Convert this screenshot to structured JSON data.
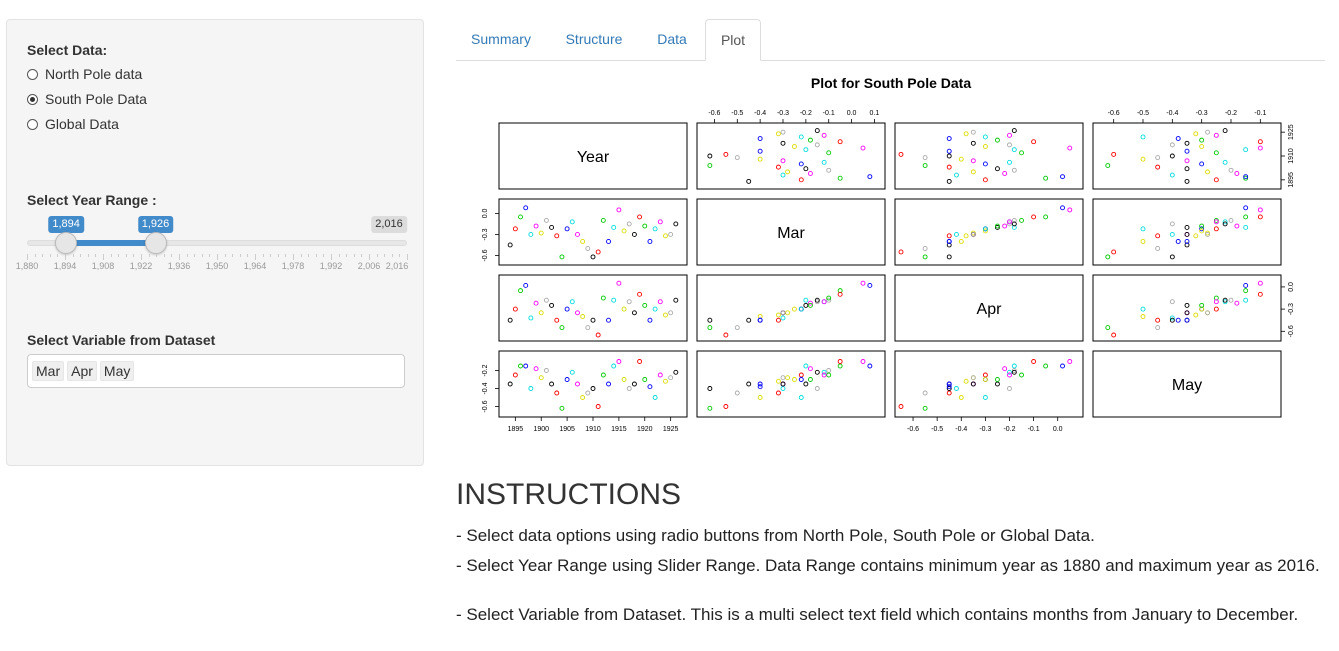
{
  "sidebar": {
    "select_data_label": "Select Data:",
    "radios": [
      {
        "label": "North Pole data",
        "checked": false
      },
      {
        "label": "South Pole Data",
        "checked": true
      },
      {
        "label": "Global Data",
        "checked": false
      }
    ],
    "year_range_label": "Select Year Range :",
    "slider": {
      "min": 1880,
      "max": 2016,
      "from": 1894,
      "to": 1926,
      "from_label": "1,894",
      "to_label": "1,926",
      "max_label": "2,016",
      "grid_labels": [
        "1,880",
        "1,894",
        "1,908",
        "1,922",
        "1,936",
        "1,950",
        "1,964",
        "1,978",
        "1,992",
        "2,006",
        "2,016"
      ]
    },
    "variable_label": "Select Variable from Dataset",
    "selected_variables": [
      "Mar",
      "Apr",
      "May"
    ]
  },
  "tabs": [
    {
      "label": "Summary",
      "active": false
    },
    {
      "label": "Structure",
      "active": false
    },
    {
      "label": "Data",
      "active": false
    },
    {
      "label": "Plot",
      "active": true
    }
  ],
  "chart_data": {
    "type": "scatter",
    "subtype": "pairs-matrix",
    "title": "Plot for South Pole Data",
    "variables": [
      "Year",
      "Mar",
      "Apr",
      "May"
    ],
    "ranges": {
      "Year": [
        1893,
        1927
      ],
      "Mar": [
        -0.65,
        0.12
      ],
      "Apr": [
        -0.65,
        0.08
      ],
      "May": [
        -0.65,
        -0.05
      ]
    },
    "ticks": {
      "Year": [
        "1895",
        "1900",
        "1905",
        "1910",
        "1915",
        "1920",
        "1925"
      ],
      "Mar": [
        "-0.6",
        "-0.5",
        "-0.4",
        "-0.3",
        "-0.2",
        "-0.1",
        "0.0",
        "0.1"
      ],
      "Apr": [
        "-0.6",
        "-0.5",
        "-0.4",
        "-0.3",
        "-0.2",
        "-0.1",
        "0.0"
      ],
      "May": [
        "-0.6",
        "-0.5",
        "-0.4",
        "-0.3",
        "-0.2",
        "-0.1"
      ],
      "Year_right": [
        "1895",
        "1910",
        "1925"
      ],
      "Mar_left": [
        "-0.6",
        "-0.3",
        "0.0"
      ],
      "Apr_right": [
        "-0.6",
        "-0.3",
        "0.0"
      ],
      "May_left": [
        "-0.6",
        "-0.4",
        "-0.2"
      ]
    },
    "colors": [
      "#000000",
      "#ff0000",
      "#00cc00",
      "#0000ff",
      "#00dddd",
      "#ff00ff",
      "#dddd00",
      "#aaaaaa"
    ],
    "points": [
      {
        "Year": 1894,
        "Mar": -0.45,
        "Apr": -0.45,
        "May": -0.35
      },
      {
        "Year": 1895,
        "Mar": -0.22,
        "Apr": -0.3,
        "May": -0.25
      },
      {
        "Year": 1896,
        "Mar": -0.05,
        "Apr": -0.05,
        "May": -0.15
      },
      {
        "Year": 1897,
        "Mar": 0.08,
        "Apr": 0.02,
        "May": -0.15
      },
      {
        "Year": 1898,
        "Mar": -0.3,
        "Apr": -0.42,
        "May": -0.4
      },
      {
        "Year": 1899,
        "Mar": -0.18,
        "Apr": -0.22,
        "May": -0.18
      },
      {
        "Year": 1900,
        "Mar": -0.28,
        "Apr": -0.35,
        "May": -0.28
      },
      {
        "Year": 1901,
        "Mar": -0.1,
        "Apr": -0.18,
        "May": -0.2
      },
      {
        "Year": 1902,
        "Mar": -0.2,
        "Apr": -0.25,
        "May": -0.35
      },
      {
        "Year": 1903,
        "Mar": -0.32,
        "Apr": -0.45,
        "May": -0.45
      },
      {
        "Year": 1904,
        "Mar": -0.62,
        "Apr": -0.55,
        "May": -0.62
      },
      {
        "Year": 1905,
        "Mar": -0.22,
        "Apr": -0.3,
        "May": -0.3
      },
      {
        "Year": 1906,
        "Mar": -0.12,
        "Apr": -0.2,
        "May": -0.22
      },
      {
        "Year": 1907,
        "Mar": -0.3,
        "Apr": -0.35,
        "May": -0.35
      },
      {
        "Year": 1908,
        "Mar": -0.4,
        "Apr": -0.4,
        "May": -0.5
      },
      {
        "Year": 1909,
        "Mar": -0.5,
        "Apr": -0.55,
        "May": -0.45
      },
      {
        "Year": 1910,
        "Mar": -0.62,
        "Apr": -0.45,
        "May": -0.4
      },
      {
        "Year": 1911,
        "Mar": -0.55,
        "Apr": -0.65,
        "May": -0.6
      },
      {
        "Year": 1912,
        "Mar": -0.1,
        "Apr": -0.15,
        "May": -0.25
      },
      {
        "Year": 1913,
        "Mar": -0.4,
        "Apr": -0.45,
        "May": -0.35
      },
      {
        "Year": 1914,
        "Mar": -0.2,
        "Apr": -0.18,
        "May": -0.15
      },
      {
        "Year": 1915,
        "Mar": 0.05,
        "Apr": 0.05,
        "May": -0.1
      },
      {
        "Year": 1916,
        "Mar": -0.25,
        "Apr": -0.3,
        "May": -0.3
      },
      {
        "Year": 1917,
        "Mar": -0.15,
        "Apr": -0.2,
        "May": -0.4
      },
      {
        "Year": 1918,
        "Mar": -0.3,
        "Apr": -0.35,
        "May": -0.35
      },
      {
        "Year": 1919,
        "Mar": -0.05,
        "Apr": -0.1,
        "May": -0.1
      },
      {
        "Year": 1920,
        "Mar": -0.18,
        "Apr": -0.25,
        "May": -0.3
      },
      {
        "Year": 1921,
        "Mar": -0.4,
        "Apr": -0.45,
        "May": -0.38
      },
      {
        "Year": 1922,
        "Mar": -0.22,
        "Apr": -0.3,
        "May": -0.5
      },
      {
        "Year": 1923,
        "Mar": -0.12,
        "Apr": -0.2,
        "May": -0.25
      },
      {
        "Year": 1924,
        "Mar": -0.32,
        "Apr": -0.38,
        "May": -0.32
      },
      {
        "Year": 1925,
        "Mar": -0.3,
        "Apr": -0.35,
        "May": -0.28
      },
      {
        "Year": 1926,
        "Mar": -0.15,
        "Apr": -0.18,
        "May": -0.22
      }
    ]
  },
  "instructions": {
    "title": "INSTRUCTIONS",
    "lines": [
      "- Select data options using radio buttons from North Pole, South Pole or Global Data.",
      "- Select Year Range using Slider Range. Data Range contains minimum year as 1880 and maximum year as 2016.",
      "- Select Variable from Dataset. This is a multi select text field which contains months from January to December."
    ]
  }
}
